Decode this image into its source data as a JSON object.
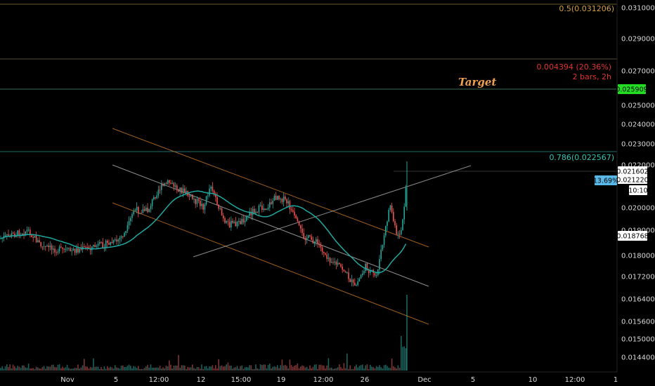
{
  "chart_data": {
    "type": "candlestick",
    "y_ticks": [
      "0.031000",
      "0.029000",
      "0.027000",
      "0.025000",
      "0.024000",
      "0.023000",
      "0.022000",
      "0.020000",
      "0.019000",
      "0.018000",
      "0.017200",
      "0.016400",
      "0.015600",
      "0.015000",
      "0.014400"
    ],
    "x_ticks": [
      "Nov",
      "5",
      "12:00",
      "12",
      "15:00",
      "19",
      "12:00",
      "26",
      "Dec",
      "5",
      "10",
      "12:00",
      "1"
    ],
    "fib_levels": [
      {
        "label": "0.5(0.031206)",
        "value": 0.031206,
        "color": "#d4a04a"
      },
      {
        "label": "0.786(0.022567)",
        "value": 0.022567,
        "color": "#35c4b0"
      }
    ],
    "target_line_value": 0.025909,
    "measure": {
      "line1": "0.004394 (20.36%)",
      "line2": "2 bars, 2h",
      "color": "#e0342c"
    },
    "annotation": "Target",
    "price_badges": [
      {
        "text": "0.025909",
        "bg": "#22dd22",
        "fg": "#000000"
      },
      {
        "text": "0.021602",
        "bg": "#ffffff",
        "fg": "#000000"
      },
      {
        "text": "0.021220",
        "bg": "#ffffff",
        "fg": "#000000"
      },
      {
        "text": "13.69%",
        "bg": "#5ab8e8",
        "fg": "#000000"
      },
      {
        "text": "10:10",
        "bg": "#ffffff",
        "fg": "#000000"
      },
      {
        "text": "0.018768",
        "bg": "#ffffff",
        "fg": "#000000"
      }
    ],
    "ma_color": "#1fa8a0",
    "up_color": "#26a69a",
    "down_color": "#ef5350",
    "grid": false
  }
}
